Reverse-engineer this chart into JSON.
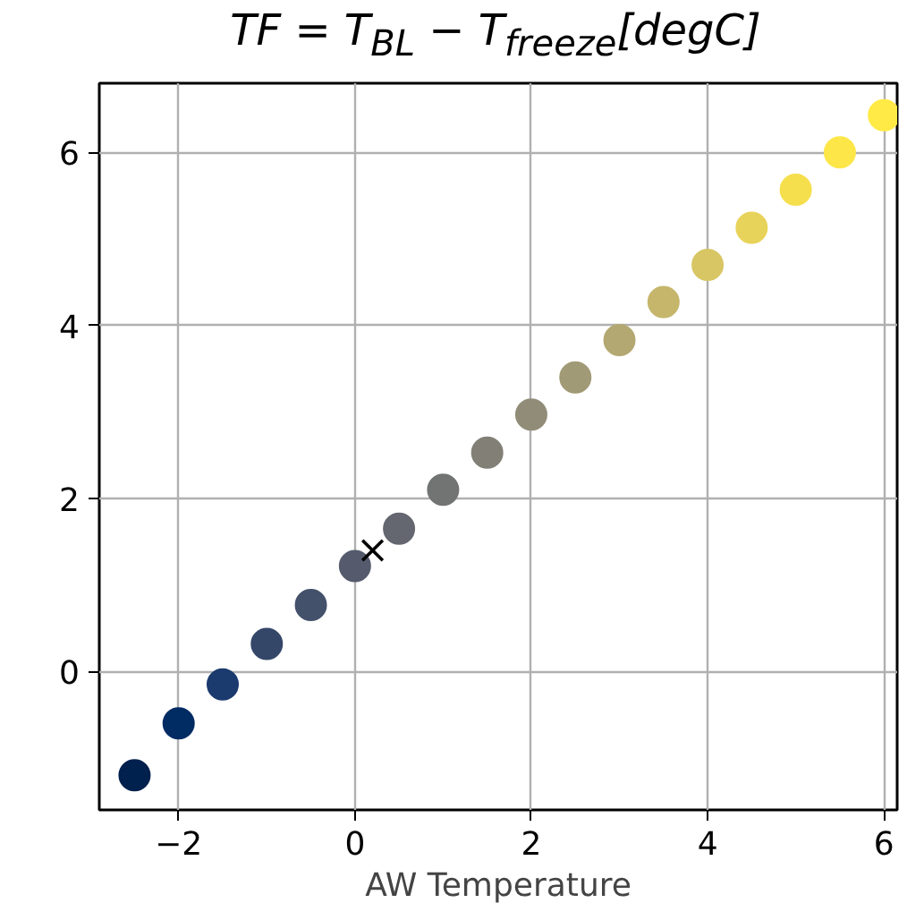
{
  "chart_data": {
    "type": "scatter",
    "title": "TF = T$_{BL}$ − T$_{freeze}$[degC]",
    "xlabel": "AW Temperature",
    "xlim": [
      -2.9,
      6.15
    ],
    "ylim": [
      -1.6,
      6.8
    ],
    "xticks": [
      {
        "value": -2,
        "label": "−2"
      },
      0,
      2,
      4,
      6
    ],
    "yticks": [
      0,
      2,
      4,
      6
    ],
    "grid": true,
    "marker": "circle",
    "series": [
      {
        "x": [
          -2.5,
          -2,
          -1.5,
          -1,
          -0.5,
          0,
          0.5,
          1,
          1.5,
          2,
          2.5,
          3,
          3.5,
          4,
          4.5,
          5,
          5.5,
          6
        ],
        "values": [
          -1.2,
          -0.6,
          -0.15,
          0.32,
          0.77,
          1.22,
          1.65,
          2.1,
          2.53,
          2.97,
          3.4,
          3.83,
          4.27,
          4.7,
          5.13,
          5.57,
          6.0,
          6.43
        ],
        "colors": [
          "#00204d",
          "#002b63",
          "#1b3a6e",
          "#354769",
          "#44516b",
          "#555b6d",
          "#646670",
          "#727373",
          "#828076",
          "#918c78",
          "#a19a76",
          "#b4a872",
          "#c5b66c",
          "#d8c664",
          "#e8d35a",
          "#f5df4d",
          "#fde648",
          "#ffea46"
        ]
      },
      {
        "x": [
          0.2
        ],
        "values": [
          1.4
        ],
        "color": "#000000",
        "marker": "cross"
      }
    ]
  }
}
